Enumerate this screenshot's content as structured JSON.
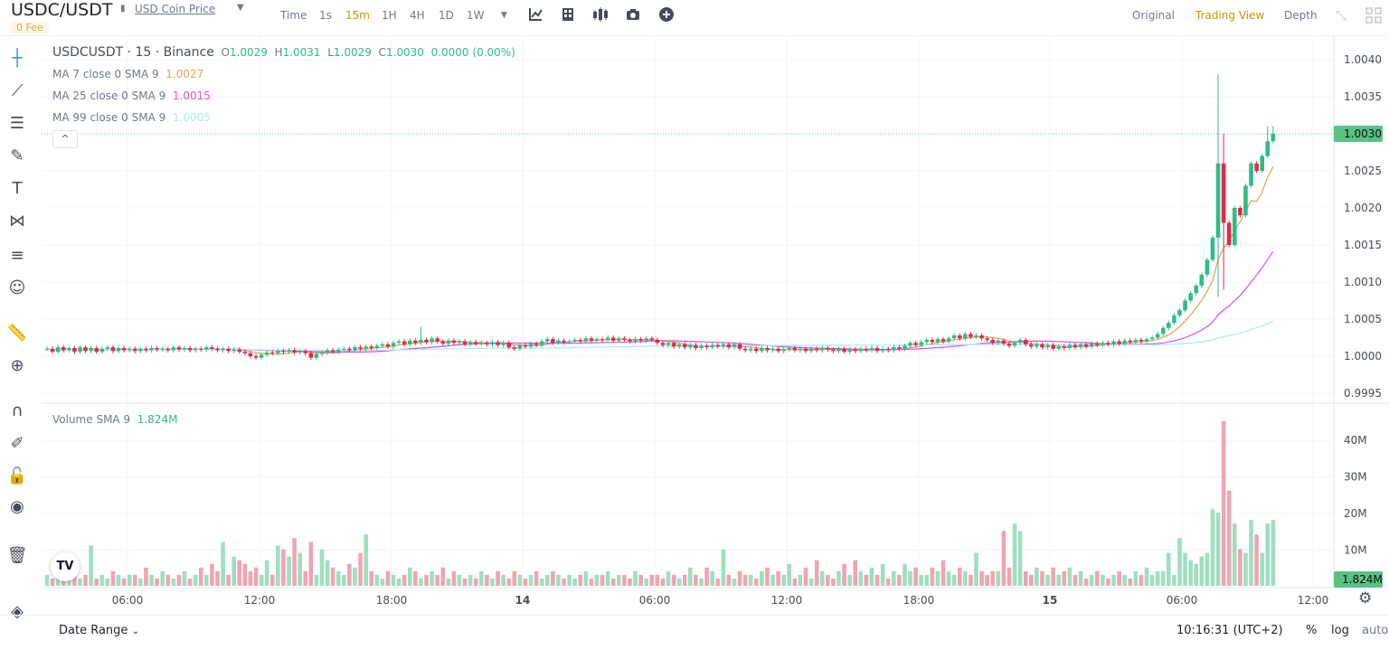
{
  "header": {
    "symbol": "USDC/USDT",
    "coin_link": "USD Coin Price",
    "fee_badge": "0 Fee",
    "timeframes": [
      "Time",
      "1s",
      "15m",
      "1H",
      "4H",
      "1D",
      "1W"
    ],
    "active_timeframe": "15m",
    "toolbar_icons": [
      "indicators-icon",
      "template-icon",
      "chart-type-icon",
      "screenshot-icon",
      "add-icon"
    ],
    "views": [
      "Original",
      "Trading View",
      "Depth"
    ],
    "active_view": "Trading View"
  },
  "legend": {
    "title": "USDCUSDT · 15 · Binance",
    "o_label": "O",
    "o": "1.0029",
    "h_label": "H",
    "h": "1.0031",
    "l_label": "L",
    "l": "1.0029",
    "c_label": "C",
    "c": "1.0030",
    "change": "0.0000 (0.00%)",
    "ma7_label": "MA 7 close 0 SMA 9",
    "ma7": "1.0027",
    "ma25_label": "MA 25 close 0 SMA 9",
    "ma25": "1.0015",
    "ma99_label": "MA 99 close 0 SMA 9",
    "ma99": "1.0005",
    "volume_label": "Volume SMA 9",
    "volume": "1.824M",
    "collapse": "^"
  },
  "left_tools": [
    "crosshair-icon",
    "trend-line-icon",
    "horizontal-lines-icon",
    "brush-icon",
    "text-icon",
    "pattern-icon",
    "fib-icon",
    "emoji-icon",
    "ruler-icon",
    "zoom-in-icon",
    "magnet-icon",
    "lock-drawing-icon",
    "unlock-icon",
    "eye-icon",
    "trash-icon",
    "layers-icon"
  ],
  "footer": {
    "date_range": "Date Range",
    "clock": "10:16:31 (UTC+2)",
    "percent": "%",
    "log": "log",
    "auto": "auto"
  },
  "colors": {
    "up": "#2ebd85",
    "down": "#e0294a",
    "vol_up": "#9fdfc0",
    "vol_down": "#eea6b1",
    "ma7": "#e8a24b",
    "ma25": "#d84fe8",
    "ma99": "#a4edf7",
    "accent": "#c99400"
  },
  "chart_data": {
    "type": "candlestick",
    "interval": "15m",
    "price_ticks": [
      "1.0040",
      "1.0035",
      "1.0030",
      "1.0025",
      "1.0020",
      "1.0015",
      "1.0010",
      "1.0005",
      "1.0000",
      "0.9995"
    ],
    "price_range": [
      0.99935,
      1.00431
    ],
    "last_price": "1.0030",
    "volume_ticks": [
      "40M",
      "30M",
      "20M",
      "10M"
    ],
    "volume_last": "1.824M",
    "time_ticks": [
      "06:00",
      "12:00",
      "18:00",
      "14",
      "06:00",
      "12:00",
      "18:00",
      "15",
      "06:00",
      "12:00"
    ],
    "grid": true,
    "closes": [
      1.0001,
      1.00006,
      1.00012,
      1.00008,
      1.00011,
      1.00006,
      1.00012,
      1.00007,
      1.00011,
      1.00006,
      1.0001,
      1.00012,
      1.00007,
      1.00011,
      1.00008,
      1.0001,
      1.00007,
      1.0001,
      1.00008,
      1.00011,
      1.00009,
      1.0001,
      1.00008,
      1.00012,
      1.00009,
      1.00011,
      1.00008,
      1.0001,
      1.00009,
      1.00012,
      1.0001,
      1.00008,
      1.0001,
      1.00007,
      1.00009,
      1.00006,
      1.00004,
      1.0,
      0.99998,
      1.00002,
      1.00005,
      1.00004,
      1.00007,
      1.00006,
      1.00008,
      1.00005,
      1.00007,
      1.00004,
      0.99998,
      1.00003,
      1.00005,
      1.00008,
      1.00006,
      1.00009,
      1.0001,
      1.00008,
      1.00012,
      1.0001,
      1.00013,
      1.00011,
      1.00014,
      1.00016,
      1.00013,
      1.00018,
      1.0002,
      1.00016,
      1.00021,
      1.00018,
      1.00022,
      1.00019,
      1.00024,
      1.0002,
      1.00017,
      1.00021,
      1.00018,
      1.0002,
      1.00016,
      1.00019,
      1.00017,
      1.00018,
      1.00016,
      1.00019,
      1.00015,
      1.00018,
      1.00012,
      1.0001,
      1.00015,
      1.00013,
      1.00017,
      1.00015,
      1.0002,
      1.00023,
      1.00018,
      1.00021,
      1.00019,
      1.0002,
      1.00022,
      1.0002,
      1.00024,
      1.00021,
      1.00023,
      1.00022,
      1.00025,
      1.00021,
      1.00024,
      1.00022,
      1.0002,
      1.00023,
      1.00021,
      1.00024,
      1.00022,
      1.00018,
      1.00015,
      1.00018,
      1.00013,
      1.00016,
      1.00012,
      1.00015,
      1.00011,
      1.00014,
      1.00012,
      1.00015,
      1.00013,
      1.00016,
      1.00012,
      1.00016,
      1.0001,
      1.00008,
      1.0001,
      1.00007,
      1.00011,
      1.00008,
      1.0001,
      1.00007,
      1.00009,
      1.00011,
      1.00008,
      1.0001,
      1.00007,
      1.0001,
      1.00008,
      1.00011,
      1.00009,
      1.00007,
      1.0001,
      1.00006,
      1.00009,
      1.00007,
      1.0001,
      1.00008,
      1.00011,
      1.00007,
      1.0001,
      1.00008,
      1.00012,
      1.0001,
      1.00014,
      1.00018,
      1.00015,
      1.00019,
      1.00022,
      1.00019,
      1.00023,
      1.0002,
      1.00024,
      1.00028,
      1.00024,
      1.0003,
      1.00026,
      1.00028,
      1.00024,
      1.00022,
      1.00018,
      1.00021,
      1.00017,
      1.00014,
      1.00018,
      1.00022,
      1.00016,
      1.00013,
      1.00016,
      1.00012,
      1.00015,
      1.0001,
      1.00013,
      1.00011,
      1.00015,
      1.00012,
      1.00016,
      1.00013,
      1.00017,
      1.00015,
      1.00018,
      1.00016,
      1.0002,
      1.00017,
      1.00021,
      1.00019,
      1.00022,
      1.0002,
      1.00023,
      1.00025,
      1.0003,
      1.00038,
      1.00045,
      1.00055,
      1.00062,
      1.00075,
      1.00085,
      1.00095,
      1.0011,
      1.0013,
      1.0016,
      1.0026,
      1.0018,
      1.0015,
      1.002,
      1.0019,
      1.0023,
      1.0026,
      1.0025,
      1.0027,
      1.0029,
      1.003
    ],
    "extremes": [
      {
        "candle": 213,
        "high": 1.0038,
        "low": 1.0008
      },
      {
        "candle": 214,
        "high": 1.003,
        "low": 1.0009
      },
      {
        "candle": 222,
        "high": 1.0031
      },
      {
        "candle": 223,
        "high": 1.0031
      },
      {
        "candle": 68,
        "high": 1.0004
      }
    ],
    "volumes_m": [
      3,
      2,
      4,
      2,
      3,
      5,
      2,
      3,
      11,
      2,
      3,
      2,
      4,
      3,
      2,
      3,
      3,
      2,
      5,
      3,
      2,
      4,
      3,
      2,
      3,
      4,
      2,
      3,
      5,
      3,
      6,
      4,
      12,
      3,
      8,
      7,
      6,
      4,
      5,
      3,
      7,
      3,
      11,
      10,
      8,
      13,
      9,
      4,
      12,
      3,
      10,
      7,
      5,
      4,
      3,
      6,
      5,
      9,
      14,
      4,
      3,
      2,
      4,
      3,
      2,
      3,
      5,
      4,
      2,
      3,
      4,
      3,
      5,
      2,
      4,
      3,
      2,
      3,
      2,
      4,
      3,
      2,
      4,
      3,
      2,
      4,
      3,
      2,
      3,
      4,
      2,
      3,
      4,
      3,
      2,
      3,
      2,
      3,
      4,
      2,
      3,
      3,
      4,
      2,
      3,
      3,
      2,
      4,
      3,
      2,
      3,
      3,
      2,
      4,
      3,
      2,
      3,
      5,
      3,
      2,
      5,
      4,
      2,
      10,
      3,
      2,
      4,
      3,
      3,
      2,
      4,
      5,
      3,
      4,
      3,
      6,
      2,
      3,
      5,
      2,
      7,
      4,
      3,
      2,
      4,
      6,
      3,
      7,
      4,
      3,
      5,
      3,
      6,
      2,
      4,
      3,
      6,
      4,
      5,
      3,
      3,
      5,
      4,
      7,
      4,
      3,
      5,
      4,
      3,
      9,
      4,
      3,
      4,
      4,
      15,
      5,
      17,
      15,
      4,
      3,
      5,
      4,
      3,
      5,
      3,
      4,
      5,
      3,
      4,
      2,
      3,
      4,
      3,
      2,
      3,
      4,
      3,
      2,
      4,
      3,
      5,
      3,
      4,
      4,
      9,
      3,
      13,
      9,
      7,
      6,
      8,
      9,
      21,
      20,
      45,
      26,
      17,
      10,
      9,
      18,
      14,
      9,
      17,
      18
    ],
    "moving_averages": [
      7,
      25,
      99
    ]
  }
}
